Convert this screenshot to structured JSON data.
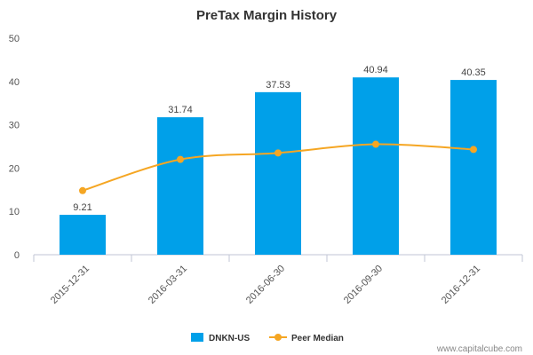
{
  "chart_data": {
    "type": "bar",
    "title": "PreTax Margin History",
    "categories": [
      "2015-12-31",
      "2016-03-31",
      "2016-06-30",
      "2016-09-30",
      "2016-12-31"
    ],
    "series": [
      {
        "name": "DNKN-US",
        "type": "bar",
        "color": "#00a0e9",
        "values": [
          9.21,
          31.74,
          37.53,
          40.94,
          40.35
        ]
      },
      {
        "name": "Peer Median",
        "type": "line",
        "color": "#f5a623",
        "values": [
          14.8,
          22.0,
          23.5,
          25.5,
          24.3
        ]
      }
    ],
    "data_labels": [
      "9.21",
      "31.74",
      "37.53",
      "40.94",
      "40.35"
    ],
    "ylim": [
      0,
      50
    ],
    "yticks": [
      0,
      10,
      20,
      30,
      40,
      50
    ],
    "grid": false,
    "legend_position": "bottom-center"
  },
  "watermark": "www.capitalcube.com"
}
